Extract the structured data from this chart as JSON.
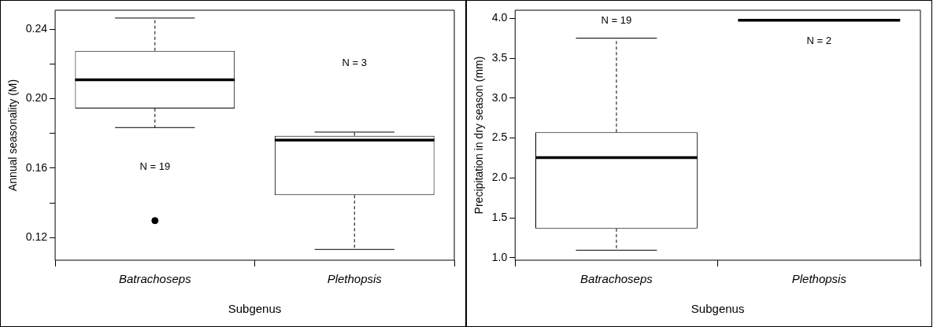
{
  "chart_data": [
    {
      "type": "box",
      "xlabel": "Subgenus",
      "ylabel": "Annual seasonality (M)",
      "categories": [
        "Batrachoseps",
        "Plethopsis"
      ],
      "boxes": [
        {
          "low": 0.1834,
          "q1": 0.1944,
          "median": 0.2109,
          "q3": 0.2276,
          "high": 0.2465,
          "outliers": [
            0.1298
          ]
        },
        {
          "low": 0.1132,
          "q1": 0.1445,
          "median": 0.1762,
          "q3": 0.1787,
          "high": 0.1808
        }
      ],
      "ylim": [
        0.107,
        0.251
      ],
      "yticks": [
        0.12,
        {
          "value": 0.14,
          "label": null
        },
        0.16,
        {
          "value": 0.18,
          "label": null
        },
        {
          "value": 0.2,
          "label": "0.20"
        },
        {
          "value": 0.22,
          "label": null
        },
        0.24
      ],
      "annotations": [
        "N = 19",
        "N = 3"
      ],
      "grid": false,
      "legend": false
    },
    {
      "type": "box",
      "xlabel": "Subgenus",
      "ylabel": "Precipitation in dry season (mm)",
      "categories": [
        "Batrachoseps",
        "Plethopsis"
      ],
      "boxes": [
        {
          "low": 1.094,
          "q1": 1.365,
          "median": 2.254,
          "q3": 2.573,
          "high": 3.752
        },
        {
          "low": 3.976,
          "q1": 3.976,
          "median": 3.976,
          "q3": 3.976,
          "high": 3.976
        }
      ],
      "ylim": [
        0.969,
        4.102
      ],
      "yticks": [
        {
          "value": 1,
          "label": "1.0"
        },
        1.5,
        {
          "value": 2,
          "label": "2.0"
        },
        2.5,
        {
          "value": 3,
          "label": "3.0"
        },
        3.5,
        {
          "value": 4,
          "label": "4.0"
        }
      ],
      "annotations": [
        "N = 19",
        "N = 2"
      ],
      "grid": false,
      "legend": false
    }
  ]
}
